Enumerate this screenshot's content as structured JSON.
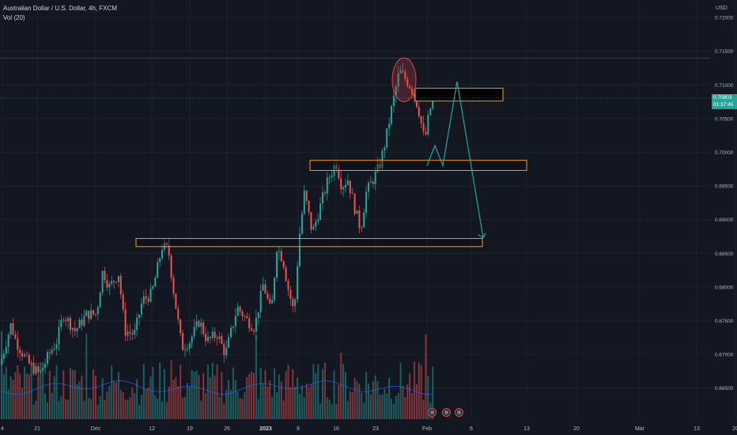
{
  "legend": {
    "title": "Australian Dollar / U.S. Dollar, 4h, FXCM",
    "indicator": "Vol (20)"
  },
  "price_axis": {
    "currency": "USD",
    "last_price": "0.70803",
    "countdown": "01:37:45"
  },
  "colors": {
    "background": "#131722",
    "up": "#26a69a",
    "down": "#ef5350",
    "zone_border": "#ff9800",
    "arrow": "#26a69a",
    "head_circle": "#e0474c"
  },
  "icons": [
    "event-icon",
    "event-icon",
    "event-icon"
  ],
  "chart_data": {
    "type": "candlestick",
    "symbol": "AUDUSD",
    "interval": "4h",
    "ylim": [
      0.66,
      0.7215
    ],
    "y_ticks": [
      "0.72000",
      "0.71500",
      "0.71000",
      "0.70500",
      "0.70000",
      "0.69500",
      "0.69000",
      "0.68500",
      "0.68000",
      "0.67500",
      "0.67000",
      "0.66500"
    ],
    "x_ticks": [
      "4",
      "21",
      "Dec",
      "12",
      "19",
      "26",
      "2023",
      "9",
      "16",
      "23",
      "Feb",
      "6",
      "13",
      "20",
      "Mar",
      "13",
      "20"
    ],
    "price_path": [
      [
        0,
        0.6685
      ],
      [
        14,
        0.6745
      ],
      [
        20,
        0.672
      ],
      [
        35,
        0.6688
      ],
      [
        50,
        0.667
      ],
      [
        62,
        0.67
      ],
      [
        72,
        0.672
      ],
      [
        80,
        0.676
      ],
      [
        95,
        0.6735
      ],
      [
        110,
        0.676
      ],
      [
        122,
        0.676
      ],
      [
        130,
        0.6825
      ],
      [
        138,
        0.68
      ],
      [
        150,
        0.682
      ],
      [
        158,
        0.6735
      ],
      [
        170,
        0.673
      ],
      [
        180,
        0.678
      ],
      [
        192,
        0.679
      ],
      [
        205,
        0.686
      ],
      [
        213,
        0.6855
      ],
      [
        220,
        0.679
      ],
      [
        230,
        0.671
      ],
      [
        240,
        0.672
      ],
      [
        252,
        0.675
      ],
      [
        262,
        0.672
      ],
      [
        275,
        0.673
      ],
      [
        285,
        0.67
      ],
      [
        300,
        0.677
      ],
      [
        313,
        0.675
      ],
      [
        322,
        0.674
      ],
      [
        333,
        0.6805
      ],
      [
        343,
        0.676
      ],
      [
        350,
        0.686
      ],
      [
        358,
        0.684
      ],
      [
        364,
        0.68
      ],
      [
        372,
        0.676
      ],
      [
        378,
        0.687
      ],
      [
        385,
        0.694
      ],
      [
        395,
        0.688
      ],
      [
        405,
        0.692
      ],
      [
        415,
        0.696
      ],
      [
        425,
        0.6985
      ],
      [
        432,
        0.695
      ],
      [
        440,
        0.696
      ],
      [
        448,
        0.692
      ],
      [
        456,
        0.6885
      ],
      [
        463,
        0.694
      ],
      [
        472,
        0.696
      ],
      [
        480,
        0.698
      ],
      [
        488,
        0.702
      ],
      [
        496,
        0.707
      ],
      [
        505,
        0.712
      ],
      [
        512,
        0.711
      ],
      [
        518,
        0.71
      ],
      [
        524,
        0.7085
      ],
      [
        530,
        0.706
      ],
      [
        537,
        0.7015
      ],
      [
        543,
        0.706
      ],
      [
        548,
        0.708
      ]
    ],
    "volume_ma_level": 0.2,
    "last_price": 0.70803,
    "annotations": {
      "zones": [
        {
          "y_top": 0.7095,
          "y_bottom": 0.7076,
          "from_x": "23 Jan",
          "to_x": "Feb"
        },
        {
          "y_top": 0.6988,
          "y_bottom": 0.6973,
          "from_x": "9 Jan",
          "to_x": "6 Feb"
        },
        {
          "y_top": 0.6872,
          "y_bottom": 0.686,
          "from_x": "12 Dec",
          "to_x": "6 Feb"
        }
      ],
      "head_circle": {
        "y_top": 0.714,
        "y_bottom": 0.7075
      },
      "projected_path": [
        [
          0.698,
          "Feb"
        ],
        [
          0.701,
          "Feb"
        ],
        [
          0.698,
          "Feb"
        ],
        [
          0.7105,
          "Feb"
        ],
        [
          0.6873,
          "6 Feb"
        ]
      ]
    }
  }
}
